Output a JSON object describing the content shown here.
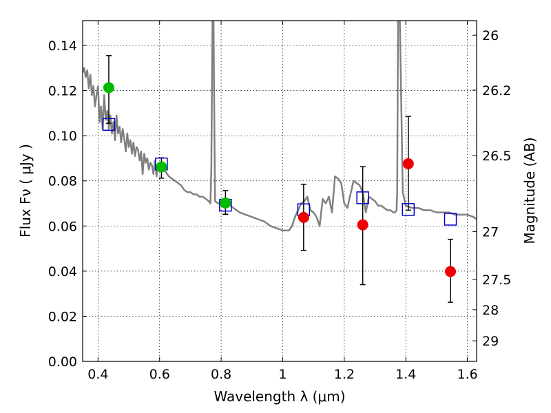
{
  "chart_data": {
    "type": "scatter",
    "xlabel": "Wavelength  λ (μm)",
    "ylabel": "Flux  Fν  ( μJy )",
    "ylabel_right": "Magnitude (AB)",
    "xlim": [
      0.35,
      1.63
    ],
    "ylim": [
      0.0,
      0.151
    ],
    "xticks": [
      0.4,
      0.6,
      0.8,
      1.0,
      1.2,
      1.4,
      1.6
    ],
    "xtick_labels": [
      "0.4",
      "0.6",
      "0.8",
      "1",
      "1.2",
      "1.4",
      "1.6"
    ],
    "yticks": [
      0.0,
      0.02,
      0.04,
      0.06,
      0.08,
      0.1,
      0.12,
      0.14
    ],
    "ytick_labels": [
      "0.00",
      "0.02",
      "0.04",
      "0.06",
      "0.08",
      "0.10",
      "0.12",
      "0.14"
    ],
    "right_ticks": [
      {
        "label": "26",
        "mag": 26.0
      },
      {
        "label": "26.2",
        "mag": 26.2
      },
      {
        "label": "26.5",
        "mag": 26.5
      },
      {
        "label": "27",
        "mag": 27.0
      },
      {
        "label": "27.5",
        "mag": 27.5
      },
      {
        "label": "28",
        "mag": 28.0
      },
      {
        "label": "29",
        "mag": 29.0
      }
    ],
    "grid": true,
    "series": [
      {
        "kind": "points",
        "color": "#00bb00",
        "points": [
          {
            "x": 0.435,
            "y": 0.1213,
            "yerr_low": 0.1055,
            "yerr_high": 0.1355
          },
          {
            "x": 0.606,
            "y": 0.0862,
            "yerr_low": 0.0812,
            "yerr_high": 0.0902
          },
          {
            "x": 0.814,
            "y": 0.0702,
            "yerr_low": 0.0652,
            "yerr_high": 0.0757
          }
        ]
      },
      {
        "kind": "points",
        "color": "#ee0000",
        "points": [
          {
            "x": 1.068,
            "y": 0.0638,
            "yerr_low": 0.0492,
            "yerr_high": 0.0785
          },
          {
            "x": 1.26,
            "y": 0.0605,
            "yerr_low": 0.034,
            "yerr_high": 0.0863
          },
          {
            "x": 1.408,
            "y": 0.0876,
            "yerr_low": 0.067,
            "yerr_high": 0.1086
          },
          {
            "x": 1.545,
            "y": 0.0398,
            "yerr_low": 0.0262,
            "yerr_high": 0.0541
          }
        ]
      },
      {
        "kind": "squares",
        "color": "#0000cc",
        "points": [
          {
            "x": 0.435,
            "y": 0.105
          },
          {
            "x": 0.606,
            "y": 0.0875
          },
          {
            "x": 0.814,
            "y": 0.0692
          },
          {
            "x": 1.068,
            "y": 0.0672
          },
          {
            "x": 1.26,
            "y": 0.0725
          },
          {
            "x": 1.408,
            "y": 0.0673
          },
          {
            "x": 1.545,
            "y": 0.063
          }
        ]
      },
      {
        "kind": "spectrum",
        "color": "#808080",
        "x": [
          0.35,
          0.355,
          0.36,
          0.365,
          0.37,
          0.375,
          0.38,
          0.385,
          0.39,
          0.395,
          0.4,
          0.405,
          0.41,
          0.415,
          0.42,
          0.425,
          0.43,
          0.435,
          0.44,
          0.445,
          0.45,
          0.455,
          0.46,
          0.465,
          0.47,
          0.475,
          0.48,
          0.485,
          0.49,
          0.495,
          0.5,
          0.505,
          0.51,
          0.515,
          0.52,
          0.525,
          0.53,
          0.535,
          0.54,
          0.545,
          0.55,
          0.555,
          0.56,
          0.565,
          0.57,
          0.575,
          0.58,
          0.585,
          0.59,
          0.595,
          0.6,
          0.61,
          0.62,
          0.63,
          0.64,
          0.65,
          0.66,
          0.67,
          0.68,
          0.69,
          0.7,
          0.71,
          0.72,
          0.73,
          0.74,
          0.75,
          0.76,
          0.765,
          0.768,
          0.772,
          0.775,
          0.78,
          0.79,
          0.8,
          0.82,
          0.84,
          0.86,
          0.88,
          0.9,
          0.92,
          0.94,
          0.96,
          0.98,
          1.0,
          1.02,
          1.03,
          1.04,
          1.05,
          1.06,
          1.07,
          1.08,
          1.09,
          1.1,
          1.11,
          1.12,
          1.13,
          1.14,
          1.15,
          1.16,
          1.17,
          1.18,
          1.19,
          1.2,
          1.21,
          1.22,
          1.23,
          1.24,
          1.25,
          1.26,
          1.27,
          1.28,
          1.29,
          1.3,
          1.31,
          1.32,
          1.33,
          1.34,
          1.35,
          1.36,
          1.365,
          1.37,
          1.372,
          1.375,
          1.38,
          1.39,
          1.4,
          1.42,
          1.44,
          1.46,
          1.48,
          1.5,
          1.52,
          1.54,
          1.56,
          1.58,
          1.6,
          1.62,
          1.63
        ],
        "y": [
          0.128,
          0.13,
          0.126,
          0.129,
          0.121,
          0.127,
          0.118,
          0.122,
          0.113,
          0.118,
          0.122,
          0.106,
          0.113,
          0.103,
          0.118,
          0.107,
          0.111,
          0.103,
          0.109,
          0.101,
          0.106,
          0.098,
          0.109,
          0.101,
          0.104,
          0.097,
          0.103,
          0.099,
          0.093,
          0.101,
          0.095,
          0.098,
          0.092,
          0.097,
          0.091,
          0.095,
          0.094,
          0.089,
          0.093,
          0.083,
          0.092,
          0.088,
          0.09,
          0.085,
          0.088,
          0.087,
          0.083,
          0.089,
          0.082,
          0.087,
          0.086,
          0.085,
          0.084,
          0.082,
          0.081,
          0.08,
          0.079,
          0.078,
          0.076,
          0.075,
          0.075,
          0.074,
          0.074,
          0.073,
          0.073,
          0.072,
          0.071,
          0.07,
          0.085,
          0.155,
          0.155,
          0.071,
          0.07,
          0.07,
          0.07,
          0.068,
          0.066,
          0.065,
          0.064,
          0.063,
          0.062,
          0.06,
          0.059,
          0.058,
          0.058,
          0.06,
          0.064,
          0.067,
          0.07,
          0.071,
          0.073,
          0.067,
          0.066,
          0.064,
          0.06,
          0.072,
          0.07,
          0.073,
          0.066,
          0.082,
          0.081,
          0.079,
          0.07,
          0.068,
          0.074,
          0.08,
          0.079,
          0.078,
          0.075,
          0.066,
          0.073,
          0.072,
          0.071,
          0.069,
          0.069,
          0.068,
          0.067,
          0.067,
          0.066,
          0.066,
          0.067,
          0.075,
          0.155,
          0.155,
          0.075,
          0.069,
          0.068,
          0.068,
          0.067,
          0.067,
          0.066,
          0.066,
          0.066,
          0.065,
          0.065,
          0.065,
          0.064,
          0.063
        ]
      }
    ]
  }
}
